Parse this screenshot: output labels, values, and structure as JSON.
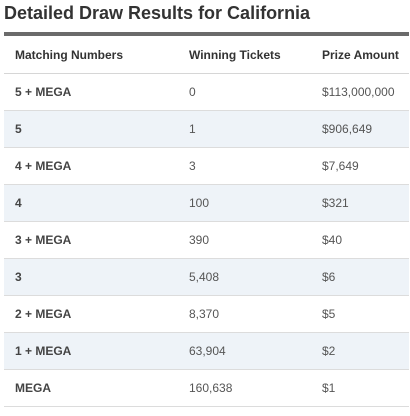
{
  "title": "Detailed Draw Results for California",
  "table": {
    "headers": [
      "Matching Numbers",
      "Winning Tickets",
      "Prize Amount"
    ],
    "rows": [
      {
        "match": "5 + MEGA",
        "tickets": "0",
        "prize": "$113,000,000"
      },
      {
        "match": "5",
        "tickets": "1",
        "prize": "$906,649"
      },
      {
        "match": "4 + MEGA",
        "tickets": "3",
        "prize": "$7,649"
      },
      {
        "match": "4",
        "tickets": "100",
        "prize": "$321"
      },
      {
        "match": "3 + MEGA",
        "tickets": "390",
        "prize": "$40"
      },
      {
        "match": "3",
        "tickets": "5,408",
        "prize": "$6"
      },
      {
        "match": "2 + MEGA",
        "tickets": "8,370",
        "prize": "$5"
      },
      {
        "match": "1 + MEGA",
        "tickets": "63,904",
        "prize": "$2"
      },
      {
        "match": "MEGA",
        "tickets": "160,638",
        "prize": "$1"
      }
    ]
  },
  "colors": {
    "header_rule": "#6b6b6b",
    "alt_row_bg": "#eef3f8"
  }
}
